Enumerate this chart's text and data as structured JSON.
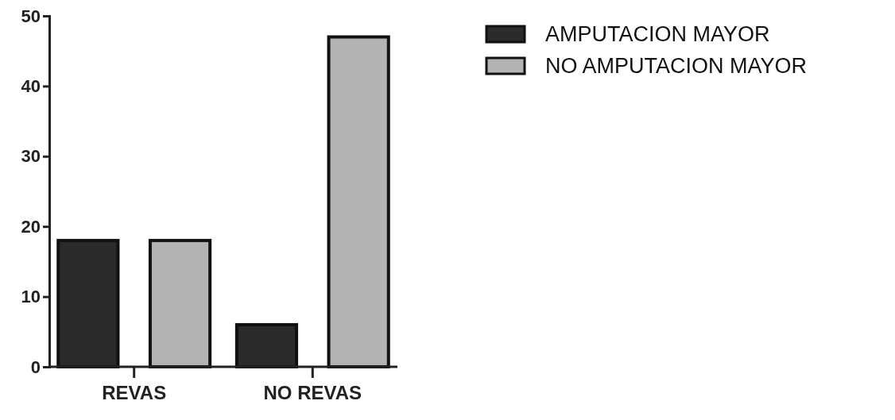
{
  "chart_data": {
    "type": "bar",
    "categories": [
      "REVAS",
      "NO REVAS"
    ],
    "series": [
      {
        "name": "AMPUTACION MAYOR",
        "color": "#2b2b2b",
        "values": [
          18,
          6
        ]
      },
      {
        "name": "NO AMPUTACION MAYOR",
        "color": "#b3b3b3",
        "values": [
          18,
          47
        ]
      }
    ],
    "ylim": [
      0,
      50
    ],
    "yticks": [
      0,
      10,
      20,
      30,
      40,
      50
    ],
    "legend": "top right"
  }
}
